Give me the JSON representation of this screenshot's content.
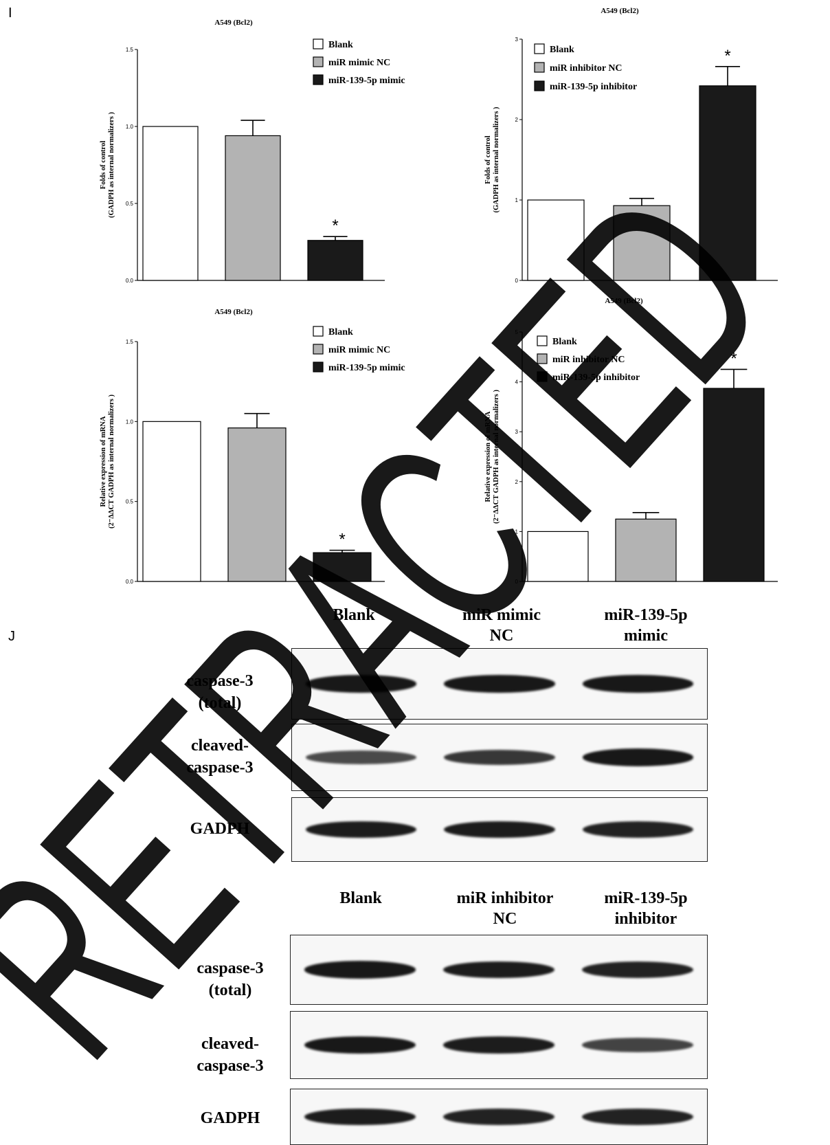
{
  "panel_labels": {
    "top": "I",
    "bottom": "J"
  },
  "chart_data": [
    {
      "type": "bar",
      "title": "A549 (Bcl2)",
      "ylabel_lines": [
        "Folds of control",
        "(GADPH as internal normalizers )"
      ],
      "ylim": [
        0,
        1.5
      ],
      "yticks": [
        "0.0",
        "0.5",
        "1.0",
        "1.5"
      ],
      "categories": [
        "Blank",
        "miR mimic NC",
        "miR-139-5p mimic"
      ],
      "values": [
        1.0,
        0.94,
        0.26
      ],
      "errors": [
        0,
        0.1,
        0.025
      ],
      "significance": [
        "",
        "",
        "*"
      ],
      "legend_position": "top-right"
    },
    {
      "type": "bar",
      "title": "A549 (Bcl2)",
      "ylabel_lines": [
        "Folds of control",
        "(GADPH as internal normalizers )"
      ],
      "ylim": [
        0,
        3
      ],
      "yticks": [
        "0",
        "1",
        "2",
        "3"
      ],
      "categories": [
        "Blank",
        "miR inhibitor NC",
        "miR-139-5p inhibitor"
      ],
      "values": [
        1.0,
        0.93,
        2.42
      ],
      "errors": [
        0,
        0.09,
        0.24
      ],
      "significance": [
        "",
        "",
        "*"
      ],
      "legend_position": "top-left"
    },
    {
      "type": "bar",
      "title": "A549 (Bcl2)",
      "ylabel_lines": [
        "Relative expression of mRNA",
        "(2⁻ΔΔCT GADPH as internal normalizers )"
      ],
      "ylim": [
        0,
        1.5
      ],
      "yticks": [
        "0.0",
        "0.5",
        "1.0",
        "1.5"
      ],
      "categories": [
        "Blank",
        "miR mimic NC",
        "miR-139-5p mimic"
      ],
      "values": [
        1.0,
        0.96,
        0.18
      ],
      "errors": [
        0,
        0.09,
        0.015
      ],
      "significance": [
        "",
        "",
        "*"
      ],
      "legend_position": "top-right"
    },
    {
      "type": "bar",
      "title": "A549 (Bcl2)",
      "ylabel_lines": [
        "Relative expression of mRNA",
        "(2⁻ΔΔCT GADPH as internal normalizers )"
      ],
      "ylim": [
        0,
        5
      ],
      "yticks": [
        "0",
        "1",
        "2",
        "3",
        "4",
        "5"
      ],
      "categories": [
        "Blank",
        "miR inhibitor NC",
        "miR-139-5p inhibitor"
      ],
      "values": [
        1.0,
        1.25,
        3.87
      ],
      "errors": [
        0,
        0.13,
        0.38
      ],
      "significance": [
        "",
        "",
        "*"
      ],
      "legend_position": "top-left"
    }
  ],
  "colors": {
    "blank": "#ffffff",
    "nc": "#b3b3b3",
    "treatment": "#1a1a1a",
    "axis": "#000000"
  },
  "western_blots": [
    {
      "lanes": [
        "Blank",
        "miR mimic\nNC",
        "miR-139-5p\nmimic"
      ],
      "rows": [
        {
          "label": "caspase-3\n(total)",
          "band_strength": [
            0.95,
            0.95,
            0.95
          ]
        },
        {
          "label": "cleaved-\ncaspase-3",
          "band_strength": [
            0.55,
            0.7,
            0.95
          ]
        },
        {
          "label": "GADPH",
          "band_strength": [
            0.9,
            0.9,
            0.85
          ]
        }
      ]
    },
    {
      "lanes": [
        "Blank",
        "miR inhibitor\nNC",
        "miR-139-5p\ninhibitor"
      ],
      "rows": [
        {
          "label": "caspase-3\n(total)",
          "band_strength": [
            0.95,
            0.9,
            0.85
          ]
        },
        {
          "label": "cleaved-\ncaspase-3",
          "band_strength": [
            0.95,
            0.9,
            0.6
          ]
        },
        {
          "label": "GADPH",
          "band_strength": [
            0.9,
            0.85,
            0.85
          ]
        }
      ]
    }
  ],
  "watermark": {
    "text": "RETRACTED",
    "color": "#000000",
    "opacity": 0.9
  }
}
